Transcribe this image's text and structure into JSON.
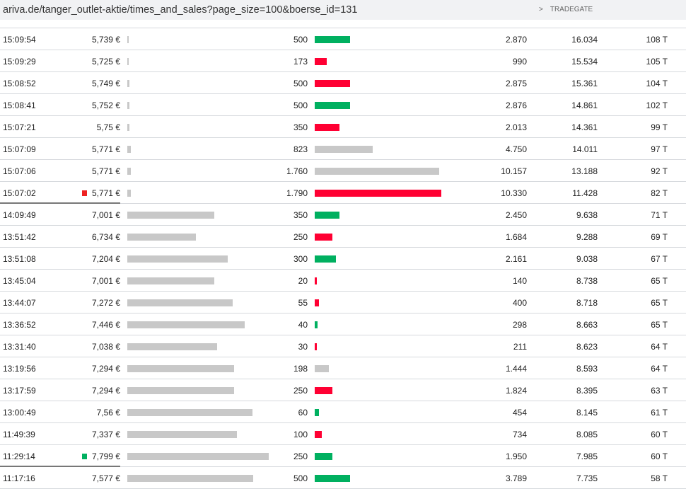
{
  "url": "ariva.de/tanger_outlet-aktie/times_and_sales?page_size=100&boerse_id=131",
  "exchange": {
    "chevron": ">",
    "label": "TRADEGATE"
  },
  "colors": {
    "up": "#00b060",
    "down": "#ff0033",
    "neutral": "#c8c8c8"
  },
  "rows": [
    {
      "time": "15:09:54",
      "price": "5,739 €",
      "p": 5.739,
      "volume": "500",
      "v": 500,
      "dir": "up",
      "turnover": "2.870",
      "cumulative": "16.034",
      "trades": "108 T"
    },
    {
      "time": "15:09:29",
      "price": "5,725 €",
      "p": 5.725,
      "volume": "173",
      "v": 173,
      "dir": "down",
      "turnover": "990",
      "cumulative": "15.534",
      "trades": "105 T"
    },
    {
      "time": "15:08:52",
      "price": "5,749 €",
      "p": 5.749,
      "volume": "500",
      "v": 500,
      "dir": "down",
      "turnover": "2.875",
      "cumulative": "15.361",
      "trades": "104 T"
    },
    {
      "time": "15:08:41",
      "price": "5,752 €",
      "p": 5.752,
      "volume": "500",
      "v": 500,
      "dir": "up",
      "turnover": "2.876",
      "cumulative": "14.861",
      "trades": "102 T"
    },
    {
      "time": "15:07:21",
      "price": "5,75 €",
      "p": 5.75,
      "volume": "350",
      "v": 350,
      "dir": "down",
      "turnover": "2.013",
      "cumulative": "14.361",
      "trades": "99 T"
    },
    {
      "time": "15:07:09",
      "price": "5,771 €",
      "p": 5.771,
      "volume": "823",
      "v": 823,
      "dir": "neutral",
      "turnover": "4.750",
      "cumulative": "14.011",
      "trades": "97 T"
    },
    {
      "time": "15:07:06",
      "price": "5,771 €",
      "p": 5.771,
      "volume": "1.760",
      "v": 1760,
      "dir": "neutral",
      "turnover": "10.157",
      "cumulative": "13.188",
      "trades": "92 T"
    },
    {
      "time": "15:07:02",
      "price": "5,771 €",
      "p": 5.771,
      "volume": "1.790",
      "v": 1790,
      "dir": "down",
      "turnover": "10.330",
      "cumulative": "11.428",
      "trades": "82 T",
      "marker": "down"
    },
    {
      "time": "14:09:49",
      "price": "7,001 €",
      "p": 7.001,
      "volume": "350",
      "v": 350,
      "dir": "up",
      "turnover": "2.450",
      "cumulative": "9.638",
      "trades": "71 T"
    },
    {
      "time": "13:51:42",
      "price": "6,734 €",
      "p": 6.734,
      "volume": "250",
      "v": 250,
      "dir": "down",
      "turnover": "1.684",
      "cumulative": "9.288",
      "trades": "69 T"
    },
    {
      "time": "13:51:08",
      "price": "7,204 €",
      "p": 7.204,
      "volume": "300",
      "v": 300,
      "dir": "up",
      "turnover": "2.161",
      "cumulative": "9.038",
      "trades": "67 T"
    },
    {
      "time": "13:45:04",
      "price": "7,001 €",
      "p": 7.001,
      "volume": "20",
      "v": 20,
      "dir": "down",
      "turnover": "140",
      "cumulative": "8.738",
      "trades": "65 T"
    },
    {
      "time": "13:44:07",
      "price": "7,272 €",
      "p": 7.272,
      "volume": "55",
      "v": 55,
      "dir": "down",
      "turnover": "400",
      "cumulative": "8.718",
      "trades": "65 T"
    },
    {
      "time": "13:36:52",
      "price": "7,446 €",
      "p": 7.446,
      "volume": "40",
      "v": 40,
      "dir": "up",
      "turnover": "298",
      "cumulative": "8.663",
      "trades": "65 T"
    },
    {
      "time": "13:31:40",
      "price": "7,038 €",
      "p": 7.038,
      "volume": "30",
      "v": 30,
      "dir": "down",
      "turnover": "211",
      "cumulative": "8.623",
      "trades": "64 T"
    },
    {
      "time": "13:19:56",
      "price": "7,294 €",
      "p": 7.294,
      "volume": "198",
      "v": 198,
      "dir": "neutral",
      "turnover": "1.444",
      "cumulative": "8.593",
      "trades": "64 T"
    },
    {
      "time": "13:17:59",
      "price": "7,294 €",
      "p": 7.294,
      "volume": "250",
      "v": 250,
      "dir": "down",
      "turnover": "1.824",
      "cumulative": "8.395",
      "trades": "63 T"
    },
    {
      "time": "13:00:49",
      "price": "7,56 €",
      "p": 7.56,
      "volume": "60",
      "v": 60,
      "dir": "up",
      "turnover": "454",
      "cumulative": "8.145",
      "trades": "61 T"
    },
    {
      "time": "11:49:39",
      "price": "7,337 €",
      "p": 7.337,
      "volume": "100",
      "v": 100,
      "dir": "down",
      "turnover": "734",
      "cumulative": "8.085",
      "trades": "60 T"
    },
    {
      "time": "11:29:14",
      "price": "7,799 €",
      "p": 7.799,
      "volume": "250",
      "v": 250,
      "dir": "up",
      "turnover": "1.950",
      "cumulative": "7.985",
      "trades": "60 T",
      "marker": "up"
    },
    {
      "time": "11:17:16",
      "price": "7,577 €",
      "p": 7.577,
      "volume": "500",
      "v": 500,
      "dir": "up",
      "turnover": "3.789",
      "cumulative": "7.735",
      "trades": "58 T"
    }
  ]
}
